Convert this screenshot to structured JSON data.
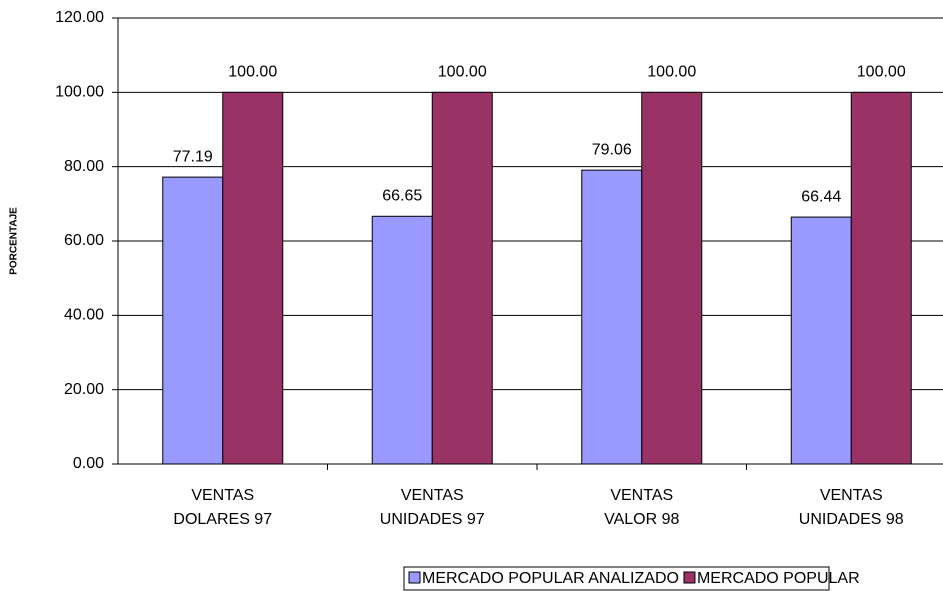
{
  "chart_data": {
    "type": "bar",
    "y_label": "PORCENTAJE",
    "categories": [
      "VENTAS\nDOLARES 97",
      "VENTAS\nUNIDADES 97",
      "VENTAS\nVALOR 98",
      "VENTAS\nUNIDADES 98"
    ],
    "series": [
      {
        "name": "MERCADO POPULAR ANALIZADO",
        "color": "#9999ff",
        "values": [
          77.19,
          66.65,
          79.06,
          66.44
        ]
      },
      {
        "name": "MERCADO POPULAR",
        "color": "#993366",
        "values": [
          100,
          100,
          100,
          100
        ],
        "value_labels": [
          "100.00",
          "100.00",
          "100.00",
          "100.00"
        ]
      }
    ],
    "ylim": [
      0,
      120
    ],
    "yticks": [
      {
        "value": 0,
        "label": "0.00"
      },
      {
        "value": 20,
        "label": "20.00"
      },
      {
        "value": 40,
        "label": "40.00"
      },
      {
        "value": 60,
        "label": "60.00"
      },
      {
        "value": 80,
        "label": "80.00"
      },
      {
        "value": 100,
        "label": "100.00"
      },
      {
        "value": 120,
        "label": "120.00"
      }
    ],
    "grid": true,
    "legend": "bottom"
  }
}
